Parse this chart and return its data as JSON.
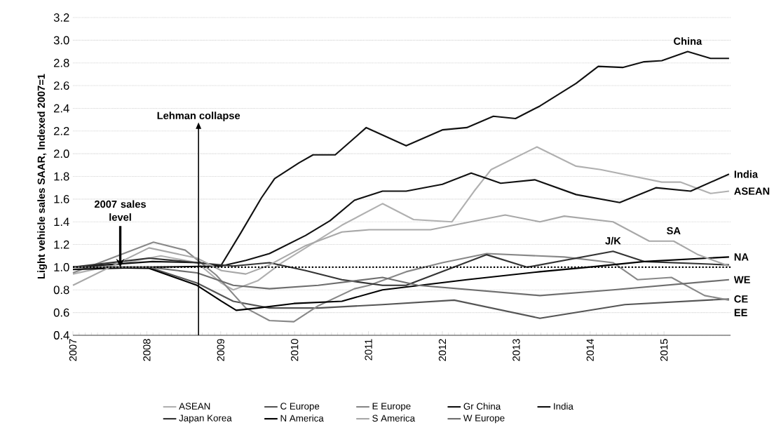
{
  "chart_data": {
    "type": "line",
    "ylabel": "Light vehicle sales SAAR, Indexed 2007=1",
    "xlim": [
      2007,
      2015.9
    ],
    "ylim": [
      0.4,
      3.2
    ],
    "xticks": [
      2007,
      2008,
      2009,
      2010,
      2011,
      2012,
      2013,
      2014,
      2015
    ],
    "yticks": [
      0.4,
      0.6,
      0.8,
      {
        "value": 1,
        "label": "1.0"
      },
      1.2,
      1.4,
      1.6,
      1.8,
      {
        "value": 2,
        "label": "2.0"
      },
      2.2,
      2.4,
      2.6,
      2.8,
      {
        "value": 3,
        "label": "3.0"
      },
      3.2
    ],
    "grid": "y",
    "legend": "bottom",
    "series": [
      {
        "name": "ASEAN",
        "color": "#b0b0b0",
        "x": [
          2007.0,
          2007.71,
          2008.19,
          2008.68,
          2009.01,
          2009.17,
          2009.5,
          2009.83,
          2010.15,
          2010.64,
          2011.19,
          2011.61,
          2012.13,
          2012.43,
          2012.66,
          2013.28,
          2013.81,
          2014.14,
          2014.97,
          2015.22,
          2015.63,
          2015.88
        ],
        "values": [
          0.94,
          1.04,
          1.1,
          1.04,
          0.86,
          0.8,
          0.88,
          1.04,
          1.17,
          1.37,
          1.56,
          1.42,
          1.4,
          1.67,
          1.86,
          2.06,
          1.89,
          1.86,
          1.75,
          1.75,
          1.65,
          1.67
        ]
      },
      {
        "name": "C Europe",
        "color": "#555555",
        "x": [
          2007.0,
          2008.03,
          2008.68,
          2009.17,
          2009.66,
          2010.32,
          2011.19,
          2012.16,
          2013.32,
          2014.47,
          2015.88
        ],
        "values": [
          1.0,
          1.0,
          0.86,
          0.7,
          0.64,
          0.64,
          0.67,
          0.71,
          0.55,
          0.67,
          0.72
        ]
      },
      {
        "name": "E Europe",
        "color": "#888888",
        "x": [
          2007.0,
          2008.09,
          2008.52,
          2008.94,
          2009.34,
          2009.66,
          2009.99,
          2010.32,
          2010.81,
          2011.01,
          2011.51,
          2012.0,
          2012.6,
          2013.65,
          2014.31,
          2014.64,
          2015.1,
          2015.55,
          2015.88
        ],
        "values": [
          0.95,
          1.22,
          1.15,
          0.93,
          0.64,
          0.53,
          0.52,
          0.66,
          0.81,
          0.84,
          0.96,
          1.04,
          1.12,
          1.09,
          1.04,
          0.89,
          0.91,
          0.75,
          0.71
        ]
      },
      {
        "name": "Gr China",
        "color": "#111111",
        "x": [
          2007.0,
          2008.08,
          2008.72,
          2009.0,
          2009.27,
          2009.55,
          2009.73,
          2010.06,
          2010.25,
          2010.55,
          2010.97,
          2011.51,
          2012.0,
          2012.33,
          2012.69,
          2012.99,
          2013.32,
          2013.81,
          2014.11,
          2014.44,
          2014.73,
          2014.97,
          2015.32,
          2015.63,
          2015.88
        ],
        "values": [
          1.0,
          1.05,
          1.04,
          1.01,
          1.3,
          1.61,
          1.78,
          1.92,
          1.99,
          1.99,
          2.23,
          2.07,
          2.21,
          2.23,
          2.33,
          2.31,
          2.42,
          2.62,
          2.77,
          2.76,
          2.81,
          2.82,
          2.9,
          2.84,
          2.84
        ]
      },
      {
        "name": "India",
        "color": "#111111",
        "x": [
          2007.0,
          2008.03,
          2009.01,
          2009.34,
          2009.66,
          2010.15,
          2010.48,
          2010.81,
          2011.19,
          2011.51,
          2012.0,
          2012.39,
          2012.79,
          2013.25,
          2013.81,
          2014.4,
          2014.89,
          2015.36,
          2015.88
        ],
        "values": [
          0.98,
          1.0,
          1.01,
          1.06,
          1.12,
          1.28,
          1.41,
          1.59,
          1.67,
          1.67,
          1.73,
          1.83,
          1.74,
          1.77,
          1.64,
          1.57,
          1.7,
          1.67,
          1.82
        ]
      },
      {
        "name": "Japan Korea",
        "color": "#333333",
        "x": [
          2007.0,
          2008.03,
          2008.68,
          2009.17,
          2009.66,
          2010.15,
          2010.64,
          2011.19,
          2011.51,
          2012.6,
          2013.15,
          2014.31,
          2014.73,
          2015.88
        ],
        "values": [
          1.0,
          1.08,
          1.04,
          1.01,
          1.04,
          0.97,
          0.89,
          0.84,
          0.84,
          1.11,
          1.0,
          1.14,
          1.05,
          1.02
        ]
      },
      {
        "name": "N America",
        "color": "#000000",
        "x": [
          2007.0,
          2008.03,
          2008.68,
          2009.01,
          2009.21,
          2009.5,
          2009.99,
          2010.64,
          2011.19,
          2012.33,
          2013.32,
          2013.98,
          2014.73,
          2015.88
        ],
        "values": [
          1.0,
          0.99,
          0.84,
          0.7,
          0.62,
          0.64,
          0.68,
          0.7,
          0.8,
          0.89,
          0.96,
          1.0,
          1.05,
          1.09
        ]
      },
      {
        "name": "S America",
        "color": "#a8a8a8",
        "x": [
          2007.0,
          2008.03,
          2008.68,
          2009.01,
          2009.34,
          2009.66,
          2010.15,
          2010.64,
          2011.01,
          2011.84,
          2012.85,
          2013.32,
          2013.65,
          2014.31,
          2014.8,
          2015.13,
          2015.46,
          2015.88
        ],
        "values": [
          0.84,
          1.17,
          1.08,
          0.97,
          0.94,
          1.02,
          1.19,
          1.31,
          1.33,
          1.33,
          1.46,
          1.4,
          1.45,
          1.4,
          1.23,
          1.23,
          1.11,
          1.01
        ]
      },
      {
        "name": "W Europe",
        "color": "#6e6e6e",
        "x": [
          2007.0,
          2008.03,
          2008.68,
          2009.17,
          2009.66,
          2010.32,
          2011.19,
          2011.67,
          2013.32,
          2014.31,
          2015.88
        ],
        "values": [
          1.0,
          1.0,
          0.95,
          0.84,
          0.81,
          0.84,
          0.91,
          0.84,
          0.75,
          0.8,
          0.89
        ]
      }
    ],
    "ref_lines": [
      {
        "axis": "y",
        "value": 1,
        "label": "2007 sales level",
        "line_style": "dotted",
        "color": "#000000"
      },
      {
        "axis": "x",
        "value": 2008.7,
        "label": "Lehman collapse",
        "color": "#000000"
      }
    ],
    "annotations": [
      {
        "text": "China",
        "x": 2015.32,
        "y": 2.9
      },
      {
        "text": "India",
        "x": 2015.88,
        "y": 1.82
      },
      {
        "text": "ASEAN",
        "x": 2015.88,
        "y": 1.67
      },
      {
        "text": "SA",
        "x": 2015.13,
        "y": 1.23
      },
      {
        "text": "J/K",
        "x": 2014.31,
        "y": 1.14
      },
      {
        "text": "NA",
        "x": 2015.88,
        "y": 1.09
      },
      {
        "text": "WE",
        "x": 2015.88,
        "y": 0.89
      },
      {
        "text": "CE",
        "x": 2015.88,
        "y": 0.72
      },
      {
        "text": "EE",
        "x": 2015.88,
        "y": 0.71
      }
    ]
  }
}
